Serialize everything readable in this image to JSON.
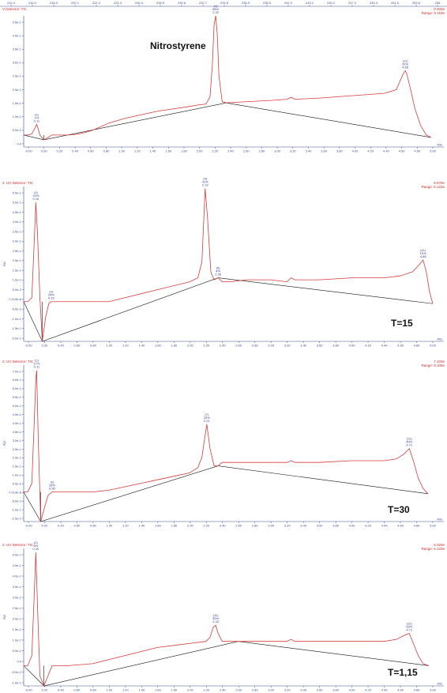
{
  "panels": [
    {
      "title": "V Detector: TIC",
      "range_top": "0.000e",
      "range_bottom": "Range: 5.116e",
      "big_label": "Nitrostyrene",
      "top_axis_ticks": [
        "214.4",
        "216.0",
        "218.9",
        "220.1",
        "222.2",
        "224.3",
        "226.4",
        "228.5",
        "230.6",
        "232.7",
        "234.8",
        "236.9",
        "238.9",
        "241.0",
        "243.1",
        "245.2",
        "247.3",
        "249.4",
        "251.5",
        "253.6",
        "256"
      ],
      "y_ticks": [
        "4.5e-1",
        "4.0e-1",
        "3.5e-1",
        "3.0e-1",
        "2.5e-1",
        "2.0e-1",
        "1.5e-1",
        "1.0e-1",
        "5.0e-2",
        "0.0"
      ],
      "x_ticks": [
        "-0.00",
        "0.00",
        "0.20",
        "0.40",
        "0.60",
        "0.80",
        "1.00",
        "1.20",
        "1.40",
        "1.60",
        "1.80",
        "2.00",
        "2.20",
        "2.40",
        "2.60",
        "2.80",
        "3.00",
        "3.20",
        "3.40",
        "3.60",
        "3.80",
        "4.00",
        "4.20",
        "4.40",
        "4.60",
        "4.80",
        "5.00"
      ],
      "x_unit": "Min",
      "peaks": [
        {
          "id": "(1)",
          "pct": "1%",
          "rt": "0.11"
        },
        {
          "id": "(4)",
          "pct": "59%",
          "rt": "2.32"
        },
        {
          "id": "(11)",
          "pct": "31%",
          "rt": "4.66"
        }
      ]
    },
    {
      "title": "2: UV Detector: TIC",
      "range_top": "5.976e",
      "range_bottom": "Range: 6.123e",
      "big_label": "T=15",
      "y_ticks": [
        "5.5e-1",
        "5.0e-1",
        "4.5e-1",
        "4.0e-1",
        "3.5e-1",
        "3.0e-1",
        "2.5e-1",
        "2.0e-1",
        "1.5e-1",
        "1.0e-1",
        "5.0e-2",
        "-7.013e-8",
        "-5.0e-2",
        "-1.0e-1",
        "-1.5e-1",
        "-2.0e-1"
      ],
      "x_ticks": [
        "-0.00",
        "0.20",
        "0.40",
        "0.60",
        "0.80",
        "1.00",
        "1.20",
        "1.40",
        "1.60",
        "1.80",
        "2.00",
        "2.20",
        "2.40",
        "2.60",
        "2.80",
        "3.00",
        "3.20",
        "3.40",
        "3.60",
        "3.80",
        "4.00",
        "4.20",
        "4.40",
        "4.60",
        "4.80",
        "5.00"
      ],
      "x_unit": "Min",
      "y_axis_label": "AU",
      "peaks": [
        {
          "id": "(1)",
          "pct": "10%",
          "rt": "0.10"
        },
        {
          "id": "(2)",
          "pct": "24%",
          "rt": "0.29"
        },
        {
          "id": "(4)",
          "pct": "41%",
          "rt": "2.19"
        },
        {
          "id": "(5)",
          "pct": "4%",
          "rt": "2.35"
        },
        {
          "id": "(11)",
          "pct": "19%",
          "rt": "4.88"
        }
      ]
    },
    {
      "title": "2: UV Detector: TIC",
      "range_top": "7.103e",
      "range_bottom": "Range: 8.106e",
      "big_label": "T=30",
      "y_ticks": [
        "7.0e-1",
        "6.5e-1",
        "6.0e-1",
        "5.5e-1",
        "5.0e-1",
        "4.5e-1",
        "4.0e-1",
        "3.5e-1",
        "3.0e-1",
        "2.5e-1",
        "2.0e-1",
        "1.5e-1",
        "1.0e-1",
        "5.0e-2",
        "-7.013e-8",
        "-5.0e-2",
        "-1.0e-1",
        "-1.5e-1"
      ],
      "x_ticks": [
        "-0.00",
        "0.20",
        "0.40",
        "0.60",
        "0.80",
        "1.00",
        "1.20",
        "1.40",
        "1.60",
        "1.80",
        "2.00",
        "2.20",
        "2.40",
        "2.60",
        "2.80",
        "3.00",
        "3.20",
        "3.40",
        "3.60",
        "3.80",
        "4.00",
        "4.20",
        "4.40",
        "4.60",
        "4.80",
        "5.00"
      ],
      "x_unit": "Min",
      "y_axis_label": "AU",
      "peaks": [
        {
          "id": "(1)",
          "pct": "17%",
          "rt": "0.11"
        },
        {
          "id": "(2)",
          "pct": "16%",
          "rt": "0.30"
        },
        {
          "id": "(7)",
          "pct": "29%",
          "rt": "2.21"
        },
        {
          "id": "(11)",
          "pct": "40%",
          "rt": "4.71"
        }
      ]
    },
    {
      "title": "2: UV Detector: TIC",
      "range_top": "5.325e",
      "range_bottom": "Range: 6.120e",
      "big_label": "T=1,15",
      "y_ticks": [
        "5.0e-1",
        "4.5e-1",
        "4.0e-1",
        "3.5e-1",
        "3.0e-1",
        "2.5e-1",
        "2.0e-1",
        "1.5e-1",
        "1.0e-1",
        "5.0e-2",
        "0.0",
        "-5.0e-2",
        "-1.0e-1"
      ],
      "x_ticks": [
        "-0.00",
        "0.20",
        "0.40",
        "0.60",
        "0.80",
        "1.00",
        "1.20",
        "1.40",
        "1.60",
        "1.80",
        "2.00",
        "2.20",
        "2.40",
        "2.60",
        "2.80",
        "3.00",
        "3.20",
        "3.40",
        "3.60",
        "3.80",
        "4.00",
        "4.20",
        "4.40",
        "4.60",
        "4.80",
        "5.00"
      ],
      "x_unit": "Min",
      "y_axis_label": "AU",
      "peaks": [
        {
          "id": "(2)",
          "pct": "6%",
          "rt": "0.10"
        },
        {
          "id": "(11)",
          "pct": "30%",
          "rt": "2.32"
        },
        {
          "id": "(11)",
          "pct": "92%",
          "rt": "4.71"
        }
      ]
    }
  ],
  "colors": {
    "trace": "#d63a3a",
    "baseline": "#111111",
    "axis": "#3b4b8f",
    "peak_label": "#2d3b8a"
  },
  "chart_data": [
    {
      "type": "line",
      "title": "Nitrostyrene",
      "xlabel": "Min",
      "ylabel": "",
      "xlim": [
        -0.05,
        5.0
      ],
      "ylim": [
        -0.05,
        0.5
      ],
      "series": [
        {
          "x": [
            -0.05,
            0.0,
            0.05,
            0.09,
            0.11,
            0.13,
            0.15,
            0.2,
            0.3,
            0.5,
            0.6,
            0.7,
            0.8,
            0.9,
            1.0,
            1.2,
            1.4,
            1.6,
            1.8,
            2.0,
            2.1,
            2.2,
            2.25,
            2.28,
            2.3,
            2.32,
            2.34,
            2.36,
            2.4,
            2.45,
            2.6,
            3.0,
            3.2,
            3.25,
            3.3,
            3.6,
            4.0,
            4.4,
            4.55,
            4.6,
            4.64,
            4.66,
            4.68,
            4.72,
            4.78,
            4.85,
            4.92,
            4.98
          ],
          "y": [
            0.0,
            0.0,
            0.005,
            0.03,
            0.045,
            0.025,
            0.0,
            -0.02,
            0.0,
            0.0,
            0.003,
            0.01,
            0.02,
            0.035,
            0.05,
            0.07,
            0.085,
            0.1,
            0.11,
            0.12,
            0.126,
            0.13,
            0.16,
            0.3,
            0.46,
            0.5,
            0.42,
            0.25,
            0.14,
            0.135,
            0.138,
            0.145,
            0.15,
            0.158,
            0.15,
            0.155,
            0.165,
            0.175,
            0.19,
            0.23,
            0.26,
            0.27,
            0.255,
            0.2,
            0.11,
            0.04,
            0.0,
            -0.01
          ]
        }
      ],
      "peaks": [
        {
          "rt": 0.11,
          "height": 0.045
        },
        {
          "rt": 2.32,
          "height": 0.5
        },
        {
          "rt": 4.66,
          "height": 0.27
        }
      ]
    },
    {
      "type": "line",
      "title": "T=15",
      "xlabel": "Min",
      "ylabel": "AU",
      "xlim": [
        -0.05,
        5.0
      ],
      "ylim": [
        -0.2,
        0.58
      ],
      "series": [
        {
          "x": [
            -0.05,
            0.0,
            0.05,
            0.08,
            0.1,
            0.12,
            0.15,
            0.18,
            0.22,
            0.26,
            0.29,
            0.32,
            0.4,
            0.6,
            0.8,
            1.0,
            1.2,
            1.4,
            1.6,
            1.8,
            2.0,
            2.1,
            2.15,
            2.19,
            2.22,
            2.26,
            2.3,
            2.35,
            2.4,
            2.5,
            2.7,
            3.0,
            3.2,
            3.25,
            3.3,
            3.6,
            4.0,
            4.4,
            4.6,
            4.75,
            4.82,
            4.88,
            4.92,
            4.96,
            5.0
          ],
          "y": [
            0.0,
            0.0,
            0.02,
            0.3,
            0.5,
            0.35,
            0.02,
            -0.2,
            -0.08,
            -0.01,
            0.0,
            0.0,
            0.0,
            0.0,
            0.0,
            0.0,
            0.02,
            0.04,
            0.06,
            0.08,
            0.1,
            0.12,
            0.2,
            0.57,
            0.42,
            0.15,
            0.11,
            0.12,
            0.1,
            0.1,
            0.11,
            0.11,
            0.1,
            0.12,
            0.11,
            0.11,
            0.12,
            0.12,
            0.13,
            0.15,
            0.18,
            0.21,
            0.15,
            0.05,
            -0.01
          ]
        }
      ],
      "peaks": [
        {
          "rt": 0.1,
          "height": 0.5
        },
        {
          "rt": 0.29,
          "height": 0.0
        },
        {
          "rt": 2.19,
          "height": 0.57
        },
        {
          "rt": 2.35,
          "height": 0.12
        },
        {
          "rt": 4.88,
          "height": 0.21
        }
      ]
    },
    {
      "type": "line",
      "title": "T=30",
      "xlabel": "Min",
      "ylabel": "AU",
      "xlim": [
        -0.05,
        5.0
      ],
      "ylim": [
        -0.17,
        0.73
      ],
      "series": [
        {
          "x": [
            -0.05,
            0.0,
            0.05,
            0.08,
            0.1,
            0.11,
            0.13,
            0.16,
            0.2,
            0.25,
            0.3,
            0.35,
            0.5,
            0.8,
            1.0,
            1.2,
            1.4,
            1.6,
            1.8,
            2.0,
            2.1,
            2.15,
            2.21,
            2.25,
            2.3,
            2.35,
            2.4,
            2.6,
            3.0,
            3.2,
            3.25,
            3.3,
            3.6,
            4.0,
            4.4,
            4.55,
            4.65,
            4.71,
            4.76,
            4.82,
            4.88,
            4.94
          ],
          "y": [
            0.0,
            0.0,
            0.05,
            0.4,
            0.65,
            0.7,
            0.3,
            -0.17,
            -0.1,
            -0.02,
            0.0,
            0.0,
            0.0,
            0.0,
            0.01,
            0.03,
            0.05,
            0.07,
            0.09,
            0.11,
            0.14,
            0.2,
            0.39,
            0.25,
            0.15,
            0.15,
            0.17,
            0.17,
            0.17,
            0.17,
            0.18,
            0.17,
            0.17,
            0.18,
            0.18,
            0.19,
            0.22,
            0.25,
            0.18,
            0.08,
            0.02,
            -0.01
          ]
        }
      ],
      "peaks": [
        {
          "rt": 0.11,
          "height": 0.7
        },
        {
          "rt": 0.3,
          "height": 0.0
        },
        {
          "rt": 2.21,
          "height": 0.39
        },
        {
          "rt": 4.71,
          "height": 0.25
        }
      ]
    },
    {
      "type": "line",
      "title": "T=1,15",
      "xlabel": "Min",
      "ylabel": "AU",
      "xlim": [
        -0.05,
        5.0
      ],
      "ylim": [
        -0.1,
        0.58
      ],
      "series": [
        {
          "x": [
            -0.05,
            0.0,
            0.05,
            0.08,
            0.1,
            0.12,
            0.15,
            0.2,
            0.3,
            0.5,
            0.8,
            1.0,
            1.2,
            1.4,
            1.6,
            1.8,
            2.0,
            2.2,
            2.25,
            2.29,
            2.32,
            2.35,
            2.4,
            2.6,
            3.0,
            3.2,
            3.25,
            3.3,
            3.6,
            4.0,
            4.4,
            4.55,
            4.65,
            4.71,
            4.76,
            4.82,
            4.88,
            4.95
          ],
          "y": [
            0.0,
            0.0,
            0.05,
            0.35,
            0.56,
            0.3,
            -0.05,
            -0.1,
            0.0,
            0.0,
            0.01,
            0.03,
            0.05,
            0.07,
            0.09,
            0.1,
            0.11,
            0.12,
            0.14,
            0.19,
            0.2,
            0.16,
            0.12,
            0.12,
            0.12,
            0.12,
            0.13,
            0.12,
            0.12,
            0.12,
            0.12,
            0.13,
            0.15,
            0.16,
            0.11,
            0.05,
            0.01,
            0.0
          ]
        }
      ],
      "peaks": [
        {
          "rt": 0.1,
          "height": 0.56
        },
        {
          "rt": 2.32,
          "height": 0.2
        },
        {
          "rt": 4.71,
          "height": 0.16
        }
      ]
    }
  ]
}
